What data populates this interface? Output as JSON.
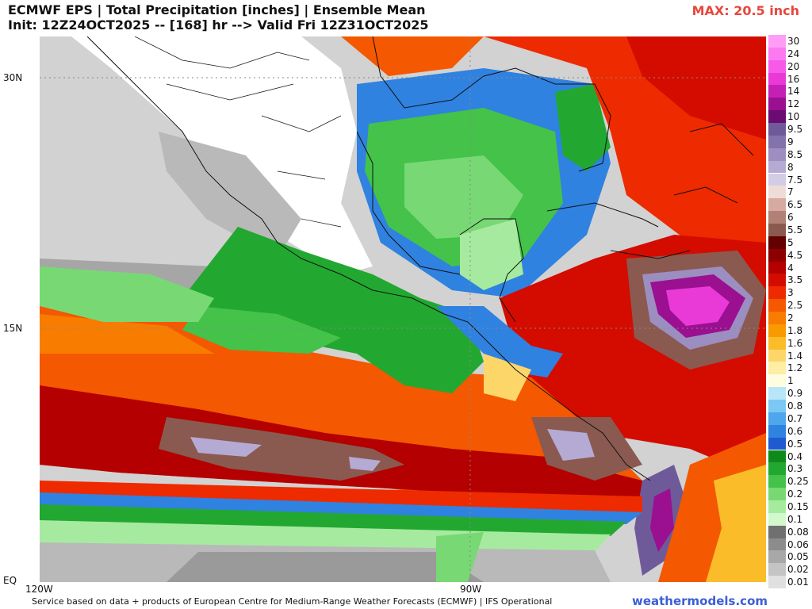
{
  "header": {
    "title": "ECMWF EPS | Total Precipitation [inches] | Ensemble Mean",
    "subtitle": "Init: 12Z24OCT2025 -- [168] hr --> Valid Fri 12Z31OCT2025",
    "max_label": "MAX: 20.5 inch"
  },
  "axes": {
    "lat_labels": [
      "30N",
      "15N",
      "EQ"
    ],
    "lon_labels": [
      "120W",
      "90W"
    ]
  },
  "footer": {
    "credit": "Service based on data + products of European Centre for Medium-Range Weather Forecasts (ECMWF) | IFS Operational",
    "brand": "weathermodels.com"
  },
  "legend": {
    "items": [
      {
        "label": "30",
        "color": "#ff9cf5"
      },
      {
        "label": "24",
        "color": "#fc7af0"
      },
      {
        "label": "20",
        "color": "#f75ae8"
      },
      {
        "label": "16",
        "color": "#e93ad8"
      },
      {
        "label": "14",
        "color": "#c520b6"
      },
      {
        "label": "12",
        "color": "#9a1090"
      },
      {
        "label": "10",
        "color": "#6a0c74"
      },
      {
        "label": "9.5",
        "color": "#6f5a99"
      },
      {
        "label": "9",
        "color": "#8473aa"
      },
      {
        "label": "8.5",
        "color": "#9c8ec0"
      },
      {
        "label": "8",
        "color": "#b5aad3"
      },
      {
        "label": "7.5",
        "color": "#d2cce5"
      },
      {
        "label": "7",
        "color": "#f0dcd6"
      },
      {
        "label": "6.5",
        "color": "#d6aaa0"
      },
      {
        "label": "6",
        "color": "#b28176"
      },
      {
        "label": "5.5",
        "color": "#8a5a50"
      },
      {
        "label": "5",
        "color": "#640000"
      },
      {
        "label": "4.5",
        "color": "#8e0000"
      },
      {
        "label": "4",
        "color": "#b40000"
      },
      {
        "label": "3.5",
        "color": "#d40c00"
      },
      {
        "label": "3",
        "color": "#ee2a00"
      },
      {
        "label": "2.5",
        "color": "#f45800"
      },
      {
        "label": "2",
        "color": "#f77c00"
      },
      {
        "label": "1.8",
        "color": "#f99a00"
      },
      {
        "label": "1.6",
        "color": "#fbbc2a"
      },
      {
        "label": "1.4",
        "color": "#fdd66a"
      },
      {
        "label": "1.2",
        "color": "#feeea5"
      },
      {
        "label": "1",
        "color": "#fffde0"
      },
      {
        "label": "0.9",
        "color": "#b8e6f8"
      },
      {
        "label": "0.8",
        "color": "#7cc8f4"
      },
      {
        "label": "0.7",
        "color": "#4ea6ec"
      },
      {
        "label": "0.6",
        "color": "#2f82e0"
      },
      {
        "label": "0.5",
        "color": "#1f5ad0"
      },
      {
        "label": "0.4",
        "color": "#0e8a1a"
      },
      {
        "label": "0.3",
        "color": "#22a830"
      },
      {
        "label": "0.25",
        "color": "#44c24a"
      },
      {
        "label": "0.2",
        "color": "#78d874"
      },
      {
        "label": "0.15",
        "color": "#a6eaa0"
      },
      {
        "label": "0.1",
        "color": "#d2f8cc"
      },
      {
        "label": "0.08",
        "color": "#707070"
      },
      {
        "label": "0.06",
        "color": "#8c8c8c"
      },
      {
        "label": "0.05",
        "color": "#a8a8a8"
      },
      {
        "label": "0.02",
        "color": "#c4c4c4"
      },
      {
        "label": "0.01",
        "color": "#e0e0e0"
      }
    ]
  }
}
